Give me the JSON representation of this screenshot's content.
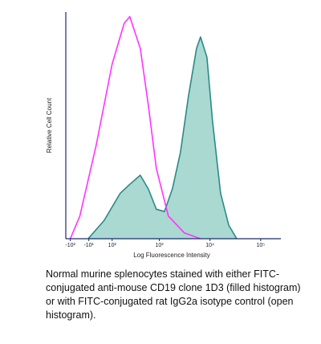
{
  "chart_data": {
    "type": "histogram-overlay",
    "xlabel": "Log Fluorescence Intensity",
    "ylabel": "Relative Cell Count",
    "xscale": "asinh",
    "xlim": [
      -130,
      250000
    ],
    "ylim": [
      0,
      100
    ],
    "xticks": [
      {
        "value": -100,
        "label": "-10²"
      },
      {
        "value": -10,
        "label": "-10¹"
      },
      {
        "value": 100,
        "label": "10²"
      },
      {
        "value": 1000,
        "label": "10³"
      },
      {
        "value": 10000,
        "label": "10⁴"
      },
      {
        "value": 100000,
        "label": "10⁵"
      }
    ],
    "series": [
      {
        "color": "#2a8a86",
        "fill": "#a9d9d1",
        "filled": true,
        "x": [
          -13,
          56,
          157,
          254,
          417,
          603,
          873,
          1260,
          1810,
          2610,
          3770,
          5420,
          6510,
          8720,
          11200,
          16200,
          23400,
          33700
        ],
        "values": [
          0,
          8,
          20,
          24,
          28,
          22,
          13,
          12,
          22,
          38,
          63,
          84,
          89,
          80,
          52,
          20,
          6,
          0
        ]
      },
      {
        "color": "#ff33ff",
        "filled": false,
        "x": [
          -100,
          -49,
          20,
          100,
          193,
          254,
          417,
          603,
          873,
          1510,
          3140,
          6510
        ],
        "values": [
          0,
          10,
          41,
          77,
          95,
          98,
          84,
          59,
          31,
          10,
          2.5,
          0
        ]
      }
    ]
  },
  "caption": [
    "Normal murine splenocytes stained with either FITC-",
    "conjugated anti-mouse CD19 clone 1D3 (filled histogram)",
    "or with FITC-conjugated rat IgG2a isotype control (open",
    "histogram)."
  ]
}
